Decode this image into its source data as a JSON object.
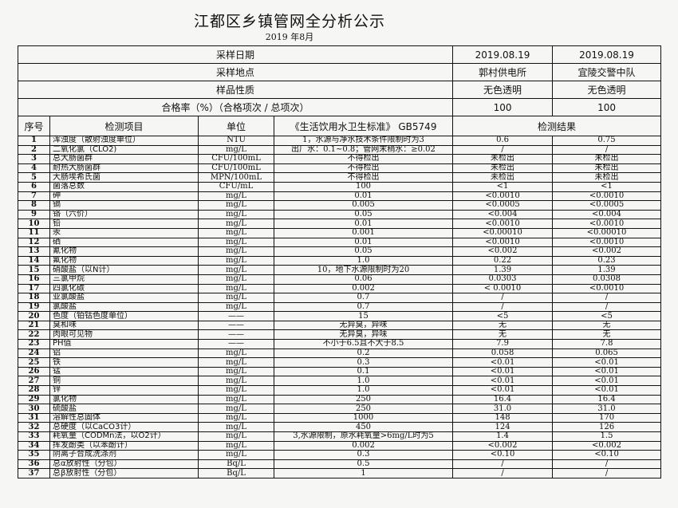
{
  "title": "江都区乡镇管网全分析公示",
  "subtitle": "2019 年8月",
  "header_rows": [
    {
      "label": "采样日期",
      "v1": "2019.08.19",
      "v2": "2019.08.19"
    },
    {
      "label": "采样地点",
      "v1": "郭村供电所",
      "v2": "宜陵交警中队"
    },
    {
      "label": "样品性质",
      "v1": "无色透明",
      "v2": "无色透明"
    },
    {
      "label": "合格率（%）（合格项次 / 总项次）",
      "v1": "100",
      "v2": "100"
    }
  ],
  "columns": {
    "seq": "序号",
    "item": "检测项目",
    "unit": "单位",
    "standard": "《生活饮用水卫生标准》 GB5749",
    "result": "检测结果"
  },
  "rows": [
    [
      "1",
      "浑浊度（散射浊度单位）",
      "NTU",
      "1，水源与净水技术条件限制时为3",
      "0.6",
      "0.75"
    ],
    [
      "2",
      "二氧化氯（CLO2)",
      "mg/L",
      "出厂水：0.1~0.8；管网末稍水：≥0.02",
      "/",
      "/"
    ],
    [
      "3",
      "总大肠菌群",
      "CFU/100mL",
      "不得检出",
      "未检出",
      "未检出"
    ],
    [
      "4",
      "耐热大肠菌群",
      "CFU/100mL",
      "不得检出",
      "未检出",
      "未检出"
    ],
    [
      "5",
      "大肠埃希氏菌",
      "MPN/100mL",
      "不得检出",
      "未检出",
      "未检出"
    ],
    [
      "6",
      "菌落总数",
      "CFU/mL",
      "100",
      "<1",
      "<1"
    ],
    [
      "7",
      "砷",
      "mg/L",
      "0.01",
      "<0.0010",
      "<0.0010"
    ],
    [
      "8",
      "镉",
      "mg/L",
      "0.005",
      "<0.0005",
      "<0.0005"
    ],
    [
      "9",
      "铬（六价）",
      "mg/L",
      "0.05",
      "<0.004",
      "<0.004"
    ],
    [
      "10",
      "铅",
      "mg/L",
      "0.01",
      "<0.0010",
      "<0.0010"
    ],
    [
      "11",
      "汞",
      "mg/L",
      "0.001",
      "<0.00010",
      "<0.00010"
    ],
    [
      "12",
      "硒",
      "mg/L",
      "0.01",
      "<0.0010",
      "<0.0010"
    ],
    [
      "13",
      "氰化物",
      "mg/L",
      "0.05",
      "<0.002",
      "<0.002"
    ],
    [
      "14",
      "氟化物",
      "mg/L",
      "1.0",
      "0.22",
      "0.23"
    ],
    [
      "15",
      "硝酸盐（以N计）",
      "mg/L",
      "10，地下水源限制时为20",
      "1.39",
      "1.39"
    ],
    [
      "16",
      "三氯甲烷",
      "mg/L",
      "0.06",
      "0.0303",
      "0.0308"
    ],
    [
      "17",
      "四氯化碳",
      "mg/L",
      "0.002",
      "< 0.0010",
      "<0.0010"
    ],
    [
      "18",
      "亚氯酸盐",
      "mg/L",
      "0.7",
      "/",
      "/"
    ],
    [
      "19",
      "氯酸盐",
      "mg/L",
      "0.7",
      "/",
      "/"
    ],
    [
      "20",
      "色度（铂钴色度单位）",
      "——",
      "15",
      "<5",
      "<5"
    ],
    [
      "21",
      "臭和味",
      "——",
      "无异臭，异味",
      "无",
      "无"
    ],
    [
      "22",
      "肉眼可见物",
      "——",
      "无异臭，异味",
      "无",
      "无"
    ],
    [
      "23",
      "PH值",
      "——",
      "不小于6.5且不大于8.5",
      "7.9",
      "7.8"
    ],
    [
      "24",
      "铝",
      "mg/L",
      "0.2",
      "0.058",
      "0.065"
    ],
    [
      "25",
      "铁",
      "mg/L",
      "0.3",
      "<0.01",
      "<0.01"
    ],
    [
      "26",
      "锰",
      "mg/L",
      "0.1",
      "<0.01",
      "<0.01"
    ],
    [
      "27",
      "铜",
      "mg/L",
      "1.0",
      "<0.01",
      "<0.01"
    ],
    [
      "28",
      "锌",
      "mg/L",
      "1.0",
      "<0.01",
      "<0.01"
    ],
    [
      "29",
      "氯化物",
      "mg/L",
      "250",
      "16.4",
      "16.4"
    ],
    [
      "30",
      "硫酸盐",
      "mg/L",
      "250",
      "31.0",
      "31.0"
    ],
    [
      "31",
      "溶解性总固体",
      "mg/L",
      "1000",
      "148",
      "170"
    ],
    [
      "32",
      "总硬度（以CaCO3计）",
      "mg/L",
      "450",
      "124",
      "126"
    ],
    [
      "33",
      "耗氧量（CODMn法，以O2计）",
      "mg/L",
      "3,水源限制，原水耗氧量>6mg/L时为5",
      "1.4",
      "1.5"
    ],
    [
      "34",
      "挥发酚类（以苯酚计）",
      "mg/L",
      "0.002",
      "<0.002",
      "<0.002"
    ],
    [
      "35",
      "阴离子合成洗涤剂",
      "mg/L",
      "0.3",
      "<0.10",
      "<0.10"
    ],
    [
      "36",
      "总α放射性（分包）",
      "Bq/L",
      "0.5",
      "/",
      "/"
    ],
    [
      "37",
      "总β放射性（分包）",
      "Bq/L",
      "1",
      "/",
      "/"
    ]
  ]
}
